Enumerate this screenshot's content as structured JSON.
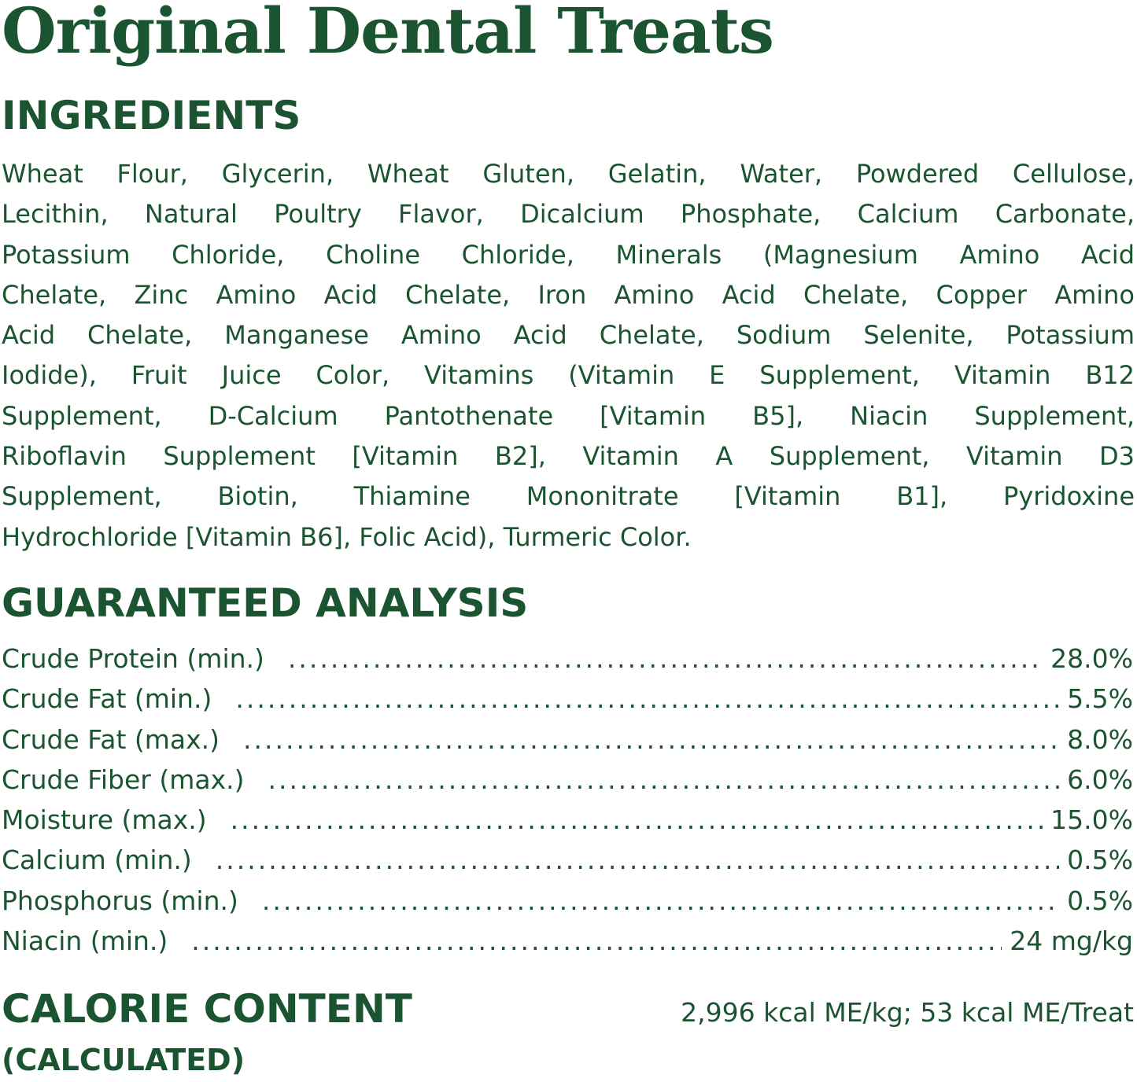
{
  "title": "Original Dental Treats",
  "ingredients": {
    "heading": "INGREDIENTS",
    "lines": [
      "Wheat Flour, Glycerin, Wheat Gluten, Gelatin, Water, Powdered Cellulose,",
      "Lecithin, Natural Poultry Flavor, Dicalcium Phosphate, Calcium Carbonate,",
      "Potassium Chloride, Choline Chloride, Minerals (Magnesium Amino Acid",
      "Chelate, Zinc Amino Acid Chelate, Iron Amino Acid Chelate, Copper Amino",
      "Acid Chelate, Manganese Amino Acid Chelate, Sodium Selenite, Potassium",
      "Iodide), Fruit Juice Color, Vitamins (Vitamin E Supplement, Vitamin B12",
      "Supplement, D-Calcium Pantothenate [Vitamin B5], Niacin Supplement,",
      "Riboflavin Supplement [Vitamin B2], Vitamin A Supplement, Vitamin D3",
      "Supplement, Biotin, Thiamine Mononitrate [Vitamin B1], Pyridoxine",
      "Hydrochloride [Vitamin B6], Folic Acid), Turmeric Color."
    ]
  },
  "analysis": {
    "heading": "GUARANTEED ANALYSIS",
    "rows": [
      {
        "label": "Crude Protein (min.)",
        "value": "28.0%"
      },
      {
        "label": "Crude Fat (min.)",
        "value": "5.5%"
      },
      {
        "label": "Crude Fat (max.)",
        "value": "8.0%"
      },
      {
        "label": "Crude Fiber (max.)",
        "value": "6.0%"
      },
      {
        "label": "Moisture (max.)",
        "value": "15.0%"
      },
      {
        "label": "Calcium (min.)",
        "value": "0.5%"
      },
      {
        "label": "Phosphorus (min.)",
        "value": "0.5%"
      },
      {
        "label": "Niacin (min.)",
        "value": "24 mg/kg"
      }
    ]
  },
  "calorie": {
    "heading": "CALORIE CONTENT",
    "subheading": "(CALCULATED)",
    "value": "2,996 kcal ME/kg; 53 kcal ME/Treat"
  },
  "colors": {
    "text": "#1b5430",
    "background": "#ffffff"
  }
}
